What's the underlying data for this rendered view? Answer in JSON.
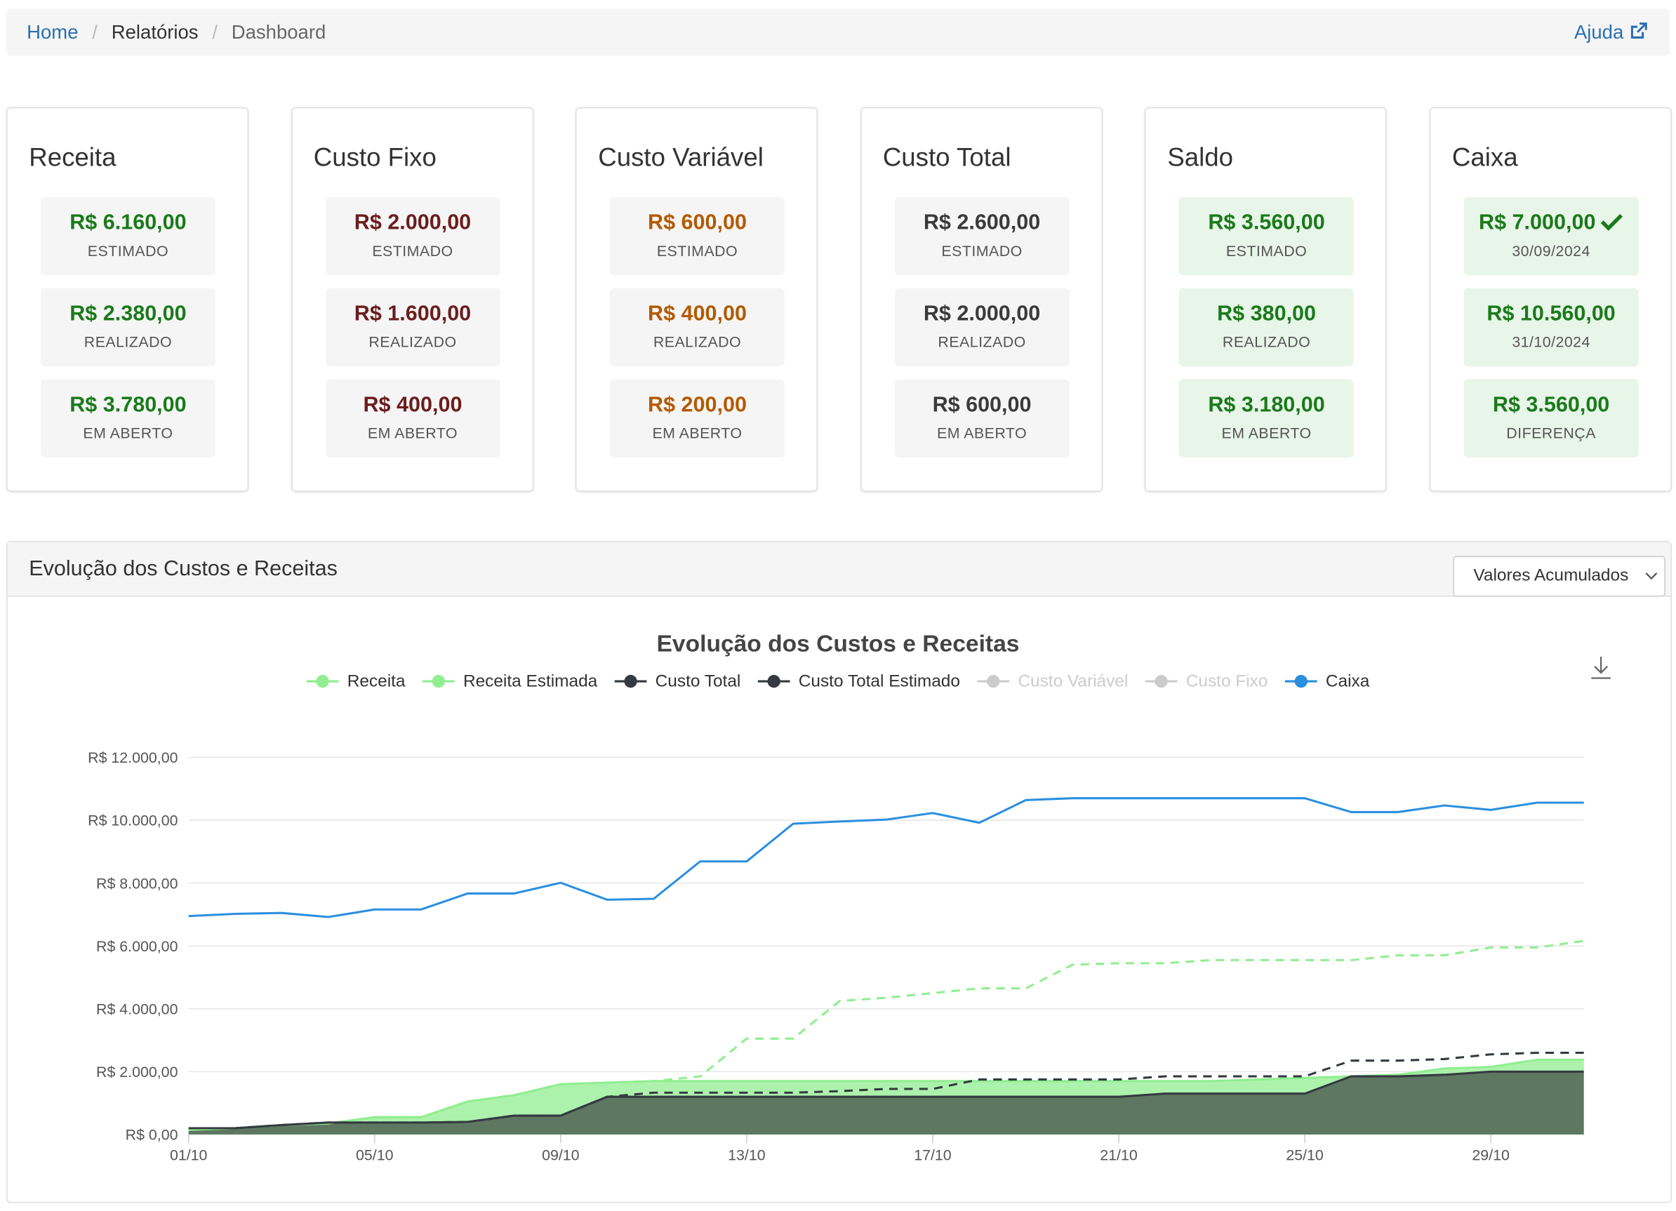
{
  "breadcrumb": {
    "items": [
      "Home",
      "Relatórios",
      "Dashboard"
    ],
    "help": "Ajuda"
  },
  "cards": [
    {
      "title": "Receita",
      "color": "#1a7a1a",
      "background": "#f5f5f5",
      "items": [
        {
          "value": "R$ 6.160,00",
          "label": "ESTIMADO"
        },
        {
          "value": "R$ 2.380,00",
          "label": "REALIZADO"
        },
        {
          "value": "R$ 3.780,00",
          "label": "EM ABERTO"
        }
      ]
    },
    {
      "title": "Custo Fixo",
      "color": "#6b1d1d",
      "background": "#f5f5f5",
      "items": [
        {
          "value": "R$ 2.000,00",
          "label": "ESTIMADO"
        },
        {
          "value": "R$ 1.600,00",
          "label": "REALIZADO"
        },
        {
          "value": "R$ 400,00",
          "label": "EM ABERTO"
        }
      ]
    },
    {
      "title": "Custo Variável",
      "color": "#b35a00",
      "background": "#f5f5f5",
      "items": [
        {
          "value": "R$ 600,00",
          "label": "ESTIMADO"
        },
        {
          "value": "R$ 400,00",
          "label": "REALIZADO"
        },
        {
          "value": "R$ 200,00",
          "label": "EM ABERTO"
        }
      ]
    },
    {
      "title": "Custo Total",
      "color": "#3a3a3a",
      "background": "#f5f5f5",
      "items": [
        {
          "value": "R$ 2.600,00",
          "label": "ESTIMADO"
        },
        {
          "value": "R$ 2.000,00",
          "label": "REALIZADO"
        },
        {
          "value": "R$ 600,00",
          "label": "EM ABERTO"
        }
      ]
    },
    {
      "title": "Saldo",
      "color": "#1a7a1a",
      "background": "#e8f5e9",
      "items": [
        {
          "value": "R$ 3.560,00",
          "label": "ESTIMADO"
        },
        {
          "value": "R$ 380,00",
          "label": "REALIZADO"
        },
        {
          "value": "R$ 3.180,00",
          "label": "EM ABERTO"
        }
      ]
    },
    {
      "title": "Caixa",
      "color": "#1a7a1a",
      "background": "#e8f5e9",
      "items": [
        {
          "value": "R$ 7.000,00",
          "label": "30/09/2024",
          "check": true
        },
        {
          "value": "R$ 10.560,00",
          "label": "31/10/2024"
        },
        {
          "value": "R$ 3.560,00",
          "label": "DIFERENÇA"
        }
      ]
    }
  ],
  "panel": {
    "title": "Evolução dos Custos e Receitas",
    "select": "Valores Acumulados"
  },
  "chart_data": {
    "type": "line",
    "title": "Evolução dos Custos e Receitas",
    "categories": [
      "01/10",
      null,
      null,
      null,
      "05/10",
      null,
      null,
      null,
      "09/10",
      null,
      null,
      null,
      "13/10",
      null,
      null,
      null,
      "17/10",
      null,
      null,
      null,
      "21/10",
      null,
      null,
      null,
      "25/10",
      null,
      null,
      null,
      "29/10",
      null,
      null
    ],
    "ylim": [
      0,
      12000
    ],
    "yticks": [
      {
        "value": 0,
        "label": "R$ 0,00"
      },
      {
        "value": 2000,
        "label": "R$ 2.000,00"
      },
      {
        "value": 4000,
        "label": "R$ 4.000,00"
      },
      {
        "value": 6000,
        "label": "R$ 6.000,00"
      },
      {
        "value": 8000,
        "label": "R$ 8.000,00"
      },
      {
        "value": 10000,
        "label": "R$ 10.000,00"
      },
      {
        "value": 12000,
        "label": "R$ 12.000,00"
      }
    ],
    "grid": true,
    "series": [
      {
        "name": "Receita",
        "color": "#90ee90",
        "area": true,
        "dashed": false,
        "visible": true,
        "values": [
          150,
          200,
          300,
          350,
          550,
          550,
          1050,
          1250,
          1600,
          1650,
          1700,
          1700,
          1700,
          1700,
          1700,
          1700,
          1700,
          1700,
          1700,
          1700,
          1700,
          1700,
          1700,
          1750,
          1800,
          1850,
          1900,
          2100,
          2150,
          2380,
          2380
        ]
      },
      {
        "name": "Receita Estimada",
        "color": "#90ee90",
        "area": false,
        "dashed": true,
        "visible": true,
        "values": [
          150,
          200,
          300,
          350,
          550,
          550,
          1050,
          1250,
          1600,
          1650,
          1700,
          1850,
          3050,
          3050,
          4250,
          4350,
          4500,
          4650,
          4650,
          5400,
          5450,
          5450,
          5550,
          5550,
          5550,
          5550,
          5700,
          5700,
          5950,
          5950,
          6160
        ]
      },
      {
        "name": "Custo Total",
        "color": "#343a40",
        "area": true,
        "dashed": false,
        "visible": true,
        "values": [
          200,
          200,
          300,
          380,
          380,
          380,
          400,
          600,
          600,
          1200,
          1200,
          1200,
          1200,
          1200,
          1200,
          1200,
          1200,
          1200,
          1200,
          1200,
          1200,
          1300,
          1300,
          1300,
          1300,
          1850,
          1850,
          1900,
          2000,
          2000,
          2000
        ]
      },
      {
        "name": "Custo Total Estimado",
        "color": "#343a40",
        "area": false,
        "dashed": true,
        "visible": true,
        "values": [
          200,
          200,
          300,
          380,
          380,
          380,
          400,
          600,
          600,
          1200,
          1330,
          1330,
          1330,
          1330,
          1380,
          1450,
          1450,
          1750,
          1750,
          1750,
          1750,
          1850,
          1850,
          1850,
          1850,
          2350,
          2350,
          2400,
          2550,
          2600,
          2600
        ]
      },
      {
        "name": "Custo Variável",
        "color": "#cccccc",
        "visible": false
      },
      {
        "name": "Custo Fixo",
        "color": "#cccccc",
        "visible": false
      },
      {
        "name": "Caixa",
        "color": "#2b8fe0",
        "area": false,
        "dashed": false,
        "visible": true,
        "values": [
          6950,
          7020,
          7050,
          6920,
          7160,
          7160,
          7670,
          7670,
          8010,
          7470,
          7500,
          8690,
          8690,
          9890,
          9960,
          10020,
          10230,
          9920,
          10640,
          10700,
          10700,
          10700,
          10700,
          10700,
          10700,
          10260,
          10260,
          10470,
          10330,
          10560,
          10560
        ]
      }
    ]
  }
}
